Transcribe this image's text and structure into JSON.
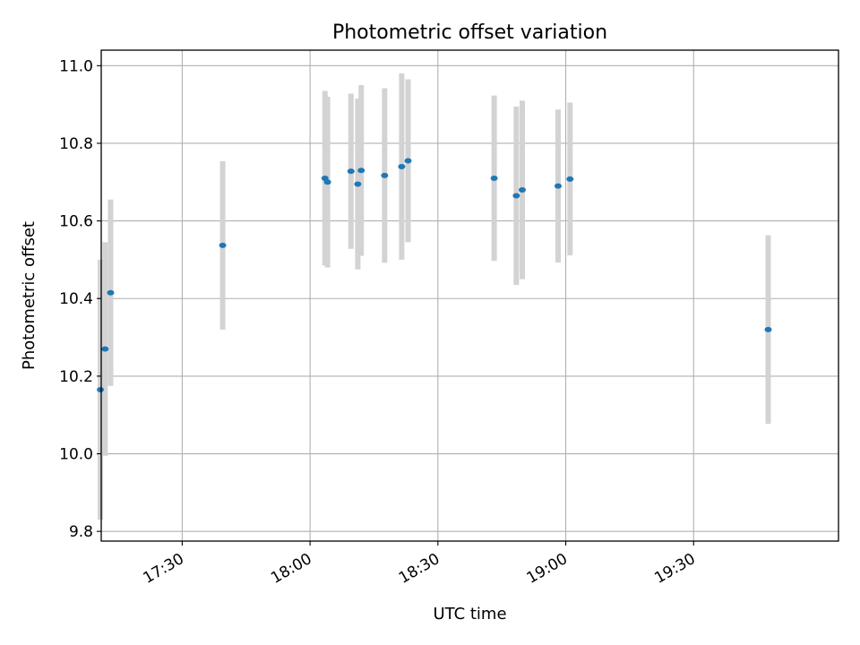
{
  "chart_data": {
    "type": "scatter",
    "title": "Photometric offset variation",
    "xlabel": "UTC time",
    "ylabel": "Photometric offset",
    "xlim": [
      "17:11",
      "20:04"
    ],
    "ylim": [
      9.775,
      11.04
    ],
    "xticks": [
      "17:30",
      "18:00",
      "18:30",
      "19:00",
      "19:30"
    ],
    "yticks": [
      9.8,
      10.0,
      10.2,
      10.4,
      10.6,
      10.8,
      11.0
    ],
    "grid": true,
    "colors": {
      "points": "#1f77b4",
      "errorbars": "#d3d3d3",
      "grid": "#b0b0b0"
    },
    "points": [
      {
        "x": "17:10:48",
        "y": 10.165,
        "err": 0.335
      },
      {
        "x": "17:11:54",
        "y": 10.27,
        "err": 0.275
      },
      {
        "x": "17:13:12",
        "y": 10.415,
        "err": 0.24
      },
      {
        "x": "17:39:30",
        "y": 10.537,
        "err": 0.217
      },
      {
        "x": "18:03:30",
        "y": 10.71,
        "err": 0.225
      },
      {
        "x": "18:04:06",
        "y": 10.7,
        "err": 0.22
      },
      {
        "x": "18:09:36",
        "y": 10.728,
        "err": 0.2
      },
      {
        "x": "18:11:12",
        "y": 10.695,
        "err": 0.22
      },
      {
        "x": "18:12:00",
        "y": 10.73,
        "err": 0.22
      },
      {
        "x": "18:17:30",
        "y": 10.717,
        "err": 0.225
      },
      {
        "x": "18:21:30",
        "y": 10.74,
        "err": 0.24
      },
      {
        "x": "18:23:00",
        "y": 10.755,
        "err": 0.21
      },
      {
        "x": "18:43:12",
        "y": 10.71,
        "err": 0.213
      },
      {
        "x": "18:48:24",
        "y": 10.665,
        "err": 0.23
      },
      {
        "x": "18:49:48",
        "y": 10.68,
        "err": 0.23
      },
      {
        "x": "18:58:12",
        "y": 10.69,
        "err": 0.197
      },
      {
        "x": "19:01:00",
        "y": 10.708,
        "err": 0.197
      },
      {
        "x": "19:47:30",
        "y": 10.32,
        "err": 0.243
      }
    ]
  }
}
